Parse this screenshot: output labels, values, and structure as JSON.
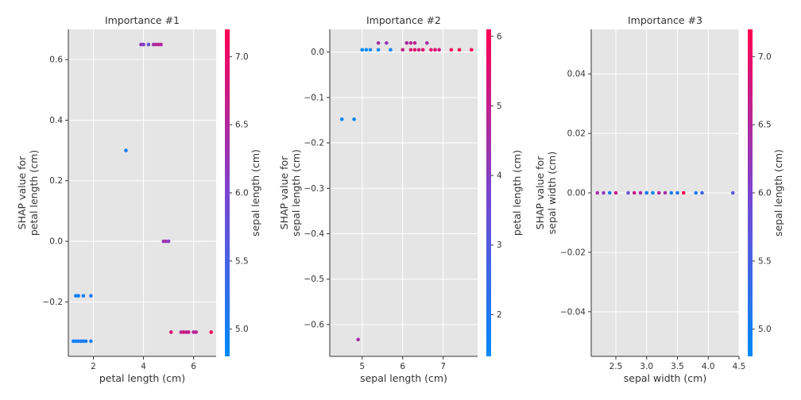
{
  "colormap": {
    "low": "#008afb",
    "mid": "#7b45d1",
    "high": "#ff0052",
    "plot_background": "#e5e5e5",
    "gridline": "#ffffff"
  },
  "chart_data": [
    {
      "type": "scatter",
      "title": "Importance #1",
      "xlabel": "petal length (cm)",
      "ylabel_lines": [
        "SHAP value for",
        "petal length (cm)"
      ],
      "xlim": [
        1.0,
        6.9
      ],
      "ylim": [
        -0.38,
        0.7
      ],
      "xticks": [
        2,
        4,
        6
      ],
      "xtick_labels": [
        "2",
        "4",
        "6"
      ],
      "yticks": [
        -0.2,
        0.0,
        0.2,
        0.4,
        0.6
      ],
      "ytick_labels": [
        "−0.2",
        "0.0",
        "0.2",
        "0.4",
        "0.6"
      ],
      "grid": true,
      "colorbar": {
        "label": "sepal length (cm)",
        "range": [
          4.8,
          7.2
        ],
        "ticks": [
          5.0,
          5.5,
          6.0,
          6.5,
          7.0
        ],
        "tick_labels": [
          "5.0",
          "5.5",
          "6.0",
          "6.5",
          "7.0"
        ]
      },
      "points": [
        {
          "x": 1.3,
          "y": -0.18,
          "c": 4.9
        },
        {
          "x": 1.4,
          "y": -0.18,
          "c": 5.0
        },
        {
          "x": 1.6,
          "y": -0.18,
          "c": 5.0
        },
        {
          "x": 1.9,
          "y": -0.18,
          "c": 5.1
        },
        {
          "x": 1.2,
          "y": -0.33,
          "c": 5.0
        },
        {
          "x": 1.3,
          "y": -0.33,
          "c": 4.9
        },
        {
          "x": 1.4,
          "y": -0.33,
          "c": 5.0
        },
        {
          "x": 1.5,
          "y": -0.33,
          "c": 5.1
        },
        {
          "x": 1.6,
          "y": -0.33,
          "c": 5.0
        },
        {
          "x": 1.7,
          "y": -0.33,
          "c": 5.0
        },
        {
          "x": 1.9,
          "y": -0.33,
          "c": 5.0
        },
        {
          "x": 3.3,
          "y": 0.3,
          "c": 5.0
        },
        {
          "x": 3.9,
          "y": 0.65,
          "c": 6.2
        },
        {
          "x": 4.0,
          "y": 0.65,
          "c": 6.1
        },
        {
          "x": 4.2,
          "y": 0.65,
          "c": 5.8
        },
        {
          "x": 4.4,
          "y": 0.65,
          "c": 6.4
        },
        {
          "x": 4.5,
          "y": 0.65,
          "c": 6.5
        },
        {
          "x": 4.6,
          "y": 0.65,
          "c": 6.6
        },
        {
          "x": 4.7,
          "y": 0.65,
          "c": 6.5
        },
        {
          "x": 4.8,
          "y": 0.0,
          "c": 6.3
        },
        {
          "x": 4.9,
          "y": 0.0,
          "c": 6.3
        },
        {
          "x": 5.0,
          "y": 0.0,
          "c": 6.2
        },
        {
          "x": 5.1,
          "y": -0.3,
          "c": 6.9
        },
        {
          "x": 5.5,
          "y": -0.3,
          "c": 6.6
        },
        {
          "x": 5.6,
          "y": -0.3,
          "c": 6.8
        },
        {
          "x": 5.7,
          "y": -0.3,
          "c": 6.6
        },
        {
          "x": 5.8,
          "y": -0.3,
          "c": 6.7
        },
        {
          "x": 6.0,
          "y": -0.3,
          "c": 6.5
        },
        {
          "x": 6.1,
          "y": -0.3,
          "c": 6.6
        },
        {
          "x": 6.7,
          "y": -0.3,
          "c": 7.1
        }
      ]
    },
    {
      "type": "scatter",
      "title": "Importance #2",
      "xlabel": "sepal length (cm)",
      "ylabel_lines": [
        "SHAP value for",
        "sepal length (cm)"
      ],
      "xlim": [
        4.2,
        7.85
      ],
      "ylim": [
        -0.67,
        0.05
      ],
      "xticks": [
        5,
        6,
        7
      ],
      "xtick_labels": [
        "5",
        "6",
        "7"
      ],
      "yticks": [
        -0.6,
        -0.5,
        -0.4,
        -0.3,
        -0.2,
        -0.1,
        0.0
      ],
      "ytick_labels": [
        "−0.6",
        "−0.5",
        "−0.4",
        "−0.3",
        "−0.2",
        "−0.1",
        "0.0"
      ],
      "grid": true,
      "colorbar": {
        "label": "petal length (cm)",
        "range": [
          1.4,
          6.1
        ],
        "ticks": [
          2,
          3,
          4,
          5,
          6
        ],
        "tick_labels": [
          "2",
          "3",
          "4",
          "5",
          "6"
        ]
      },
      "points": [
        {
          "x": 4.5,
          "y": -0.148,
          "c": 1.3
        },
        {
          "x": 4.8,
          "y": -0.148,
          "c": 1.6
        },
        {
          "x": 4.9,
          "y": -0.633,
          "c": 4.5
        },
        {
          "x": 5.0,
          "y": 0.005,
          "c": 1.5
        },
        {
          "x": 5.1,
          "y": 0.005,
          "c": 1.4
        },
        {
          "x": 5.2,
          "y": 0.005,
          "c": 1.5
        },
        {
          "x": 5.4,
          "y": 0.005,
          "c": 1.4
        },
        {
          "x": 5.4,
          "y": 0.02,
          "c": 4.5
        },
        {
          "x": 5.6,
          "y": 0.02,
          "c": 4.3
        },
        {
          "x": 5.7,
          "y": 0.005,
          "c": 1.6
        },
        {
          "x": 6.0,
          "y": 0.005,
          "c": 5.0
        },
        {
          "x": 6.1,
          "y": 0.02,
          "c": 4.7
        },
        {
          "x": 6.2,
          "y": 0.02,
          "c": 4.8
        },
        {
          "x": 6.2,
          "y": 0.005,
          "c": 5.4
        },
        {
          "x": 6.3,
          "y": 0.02,
          "c": 4.9
        },
        {
          "x": 6.3,
          "y": 0.005,
          "c": 5.6
        },
        {
          "x": 6.4,
          "y": 0.005,
          "c": 5.3
        },
        {
          "x": 6.5,
          "y": 0.005,
          "c": 5.5
        },
        {
          "x": 6.6,
          "y": 0.02,
          "c": 4.6
        },
        {
          "x": 6.7,
          "y": 0.005,
          "c": 5.7
        },
        {
          "x": 6.8,
          "y": 0.005,
          "c": 5.5
        },
        {
          "x": 6.9,
          "y": 0.005,
          "c": 5.4
        },
        {
          "x": 7.2,
          "y": 0.005,
          "c": 6.0
        },
        {
          "x": 7.4,
          "y": 0.005,
          "c": 6.1
        },
        {
          "x": 7.7,
          "y": 0.005,
          "c": 6.7
        }
      ]
    },
    {
      "type": "scatter",
      "title": "Importance #3",
      "xlabel": "sepal width (cm)",
      "ylabel_lines": [
        "SHAP value for",
        "sepal width (cm)"
      ],
      "xlim": [
        2.1,
        4.5
      ],
      "ylim": [
        -0.055,
        0.055
      ],
      "xticks": [
        2.5,
        3.0,
        3.5,
        4.0,
        4.5
      ],
      "xtick_labels": [
        "2.5",
        "3.0",
        "3.5",
        "4.0",
        "4.5"
      ],
      "yticks": [
        -0.04,
        -0.02,
        0.0,
        0.02,
        0.04
      ],
      "ytick_labels": [
        "−0.04",
        "−0.02",
        "0.00",
        "0.02",
        "0.04"
      ],
      "grid": true,
      "colorbar": {
        "label": "sepal length (cm)",
        "range": [
          4.8,
          7.2
        ],
        "ticks": [
          5.0,
          5.5,
          6.0,
          6.5,
          7.0
        ],
        "tick_labels": [
          "5.0",
          "5.5",
          "6.0",
          "6.5",
          "7.0"
        ]
      },
      "points": [
        {
          "x": 2.2,
          "y": 0.0,
          "c": 6.4
        },
        {
          "x": 2.3,
          "y": 0.0,
          "c": 6.2
        },
        {
          "x": 2.4,
          "y": 0.0,
          "c": 5.1
        },
        {
          "x": 2.5,
          "y": 0.0,
          "c": 6.7
        },
        {
          "x": 2.7,
          "y": 0.0,
          "c": 5.8
        },
        {
          "x": 2.8,
          "y": 0.0,
          "c": 6.7
        },
        {
          "x": 2.9,
          "y": 0.0,
          "c": 6.4
        },
        {
          "x": 3.0,
          "y": 0.0,
          "c": 6.7
        },
        {
          "x": 3.0,
          "y": 0.0,
          "c": 5.0
        },
        {
          "x": 3.1,
          "y": 0.0,
          "c": 4.9
        },
        {
          "x": 3.2,
          "y": 0.0,
          "c": 6.5
        },
        {
          "x": 3.3,
          "y": 0.0,
          "c": 6.4
        },
        {
          "x": 3.4,
          "y": 0.0,
          "c": 5.0
        },
        {
          "x": 3.5,
          "y": 0.0,
          "c": 5.1
        },
        {
          "x": 3.6,
          "y": 0.0,
          "c": 7.2
        },
        {
          "x": 3.8,
          "y": 0.0,
          "c": 5.1
        },
        {
          "x": 3.9,
          "y": 0.0,
          "c": 5.4
        },
        {
          "x": 4.4,
          "y": 0.0,
          "c": 5.7
        }
      ]
    }
  ]
}
